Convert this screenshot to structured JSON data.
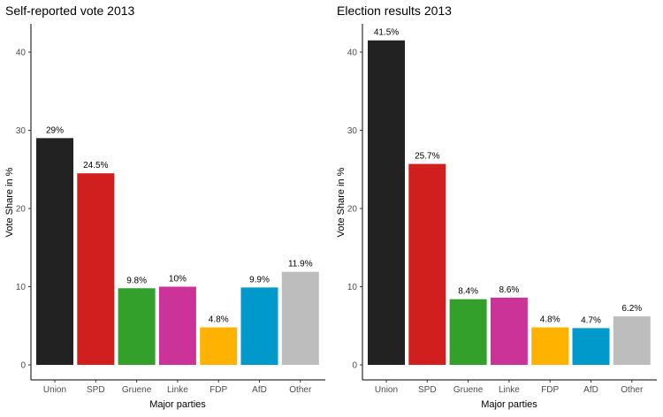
{
  "chart_data": [
    {
      "type": "bar",
      "title": "Self-reported vote 2013",
      "xlabel": "Major parties",
      "ylabel": "Vote Share in %",
      "ylim": [
        0,
        43
      ],
      "yticks": [
        0,
        10,
        20,
        30,
        40
      ],
      "grid": false,
      "categories": [
        "Union",
        "SPD",
        "Gruene",
        "Linke",
        "FDP",
        "AfD",
        "Other"
      ],
      "values": [
        29,
        24.5,
        9.8,
        10,
        4.8,
        9.9,
        11.9
      ],
      "labels": [
        "29%",
        "24.5%",
        "9.8%",
        "10%",
        "4.8%",
        "9.9%",
        "11.9%"
      ],
      "colors": [
        "#222222",
        "#d11f1f",
        "#33a02c",
        "#cc3399",
        "#ffb300",
        "#0099cc",
        "#bdbdbd"
      ]
    },
    {
      "type": "bar",
      "title": "Election results 2013",
      "xlabel": "Major parties",
      "ylabel": "Vote Share in %",
      "ylim": [
        0,
        43
      ],
      "yticks": [
        0,
        10,
        20,
        30,
        40
      ],
      "grid": false,
      "categories": [
        "Union",
        "SPD",
        "Gruene",
        "Linke",
        "FDP",
        "AfD",
        "Other"
      ],
      "values": [
        41.5,
        25.7,
        8.4,
        8.6,
        4.8,
        4.7,
        6.2
      ],
      "labels": [
        "41.5%",
        "25.7%",
        "8.4%",
        "8.6%",
        "4.8%",
        "4.7%",
        "6.2%"
      ],
      "colors": [
        "#222222",
        "#d11f1f",
        "#33a02c",
        "#cc3399",
        "#ffb300",
        "#0099cc",
        "#bdbdbd"
      ]
    }
  ]
}
